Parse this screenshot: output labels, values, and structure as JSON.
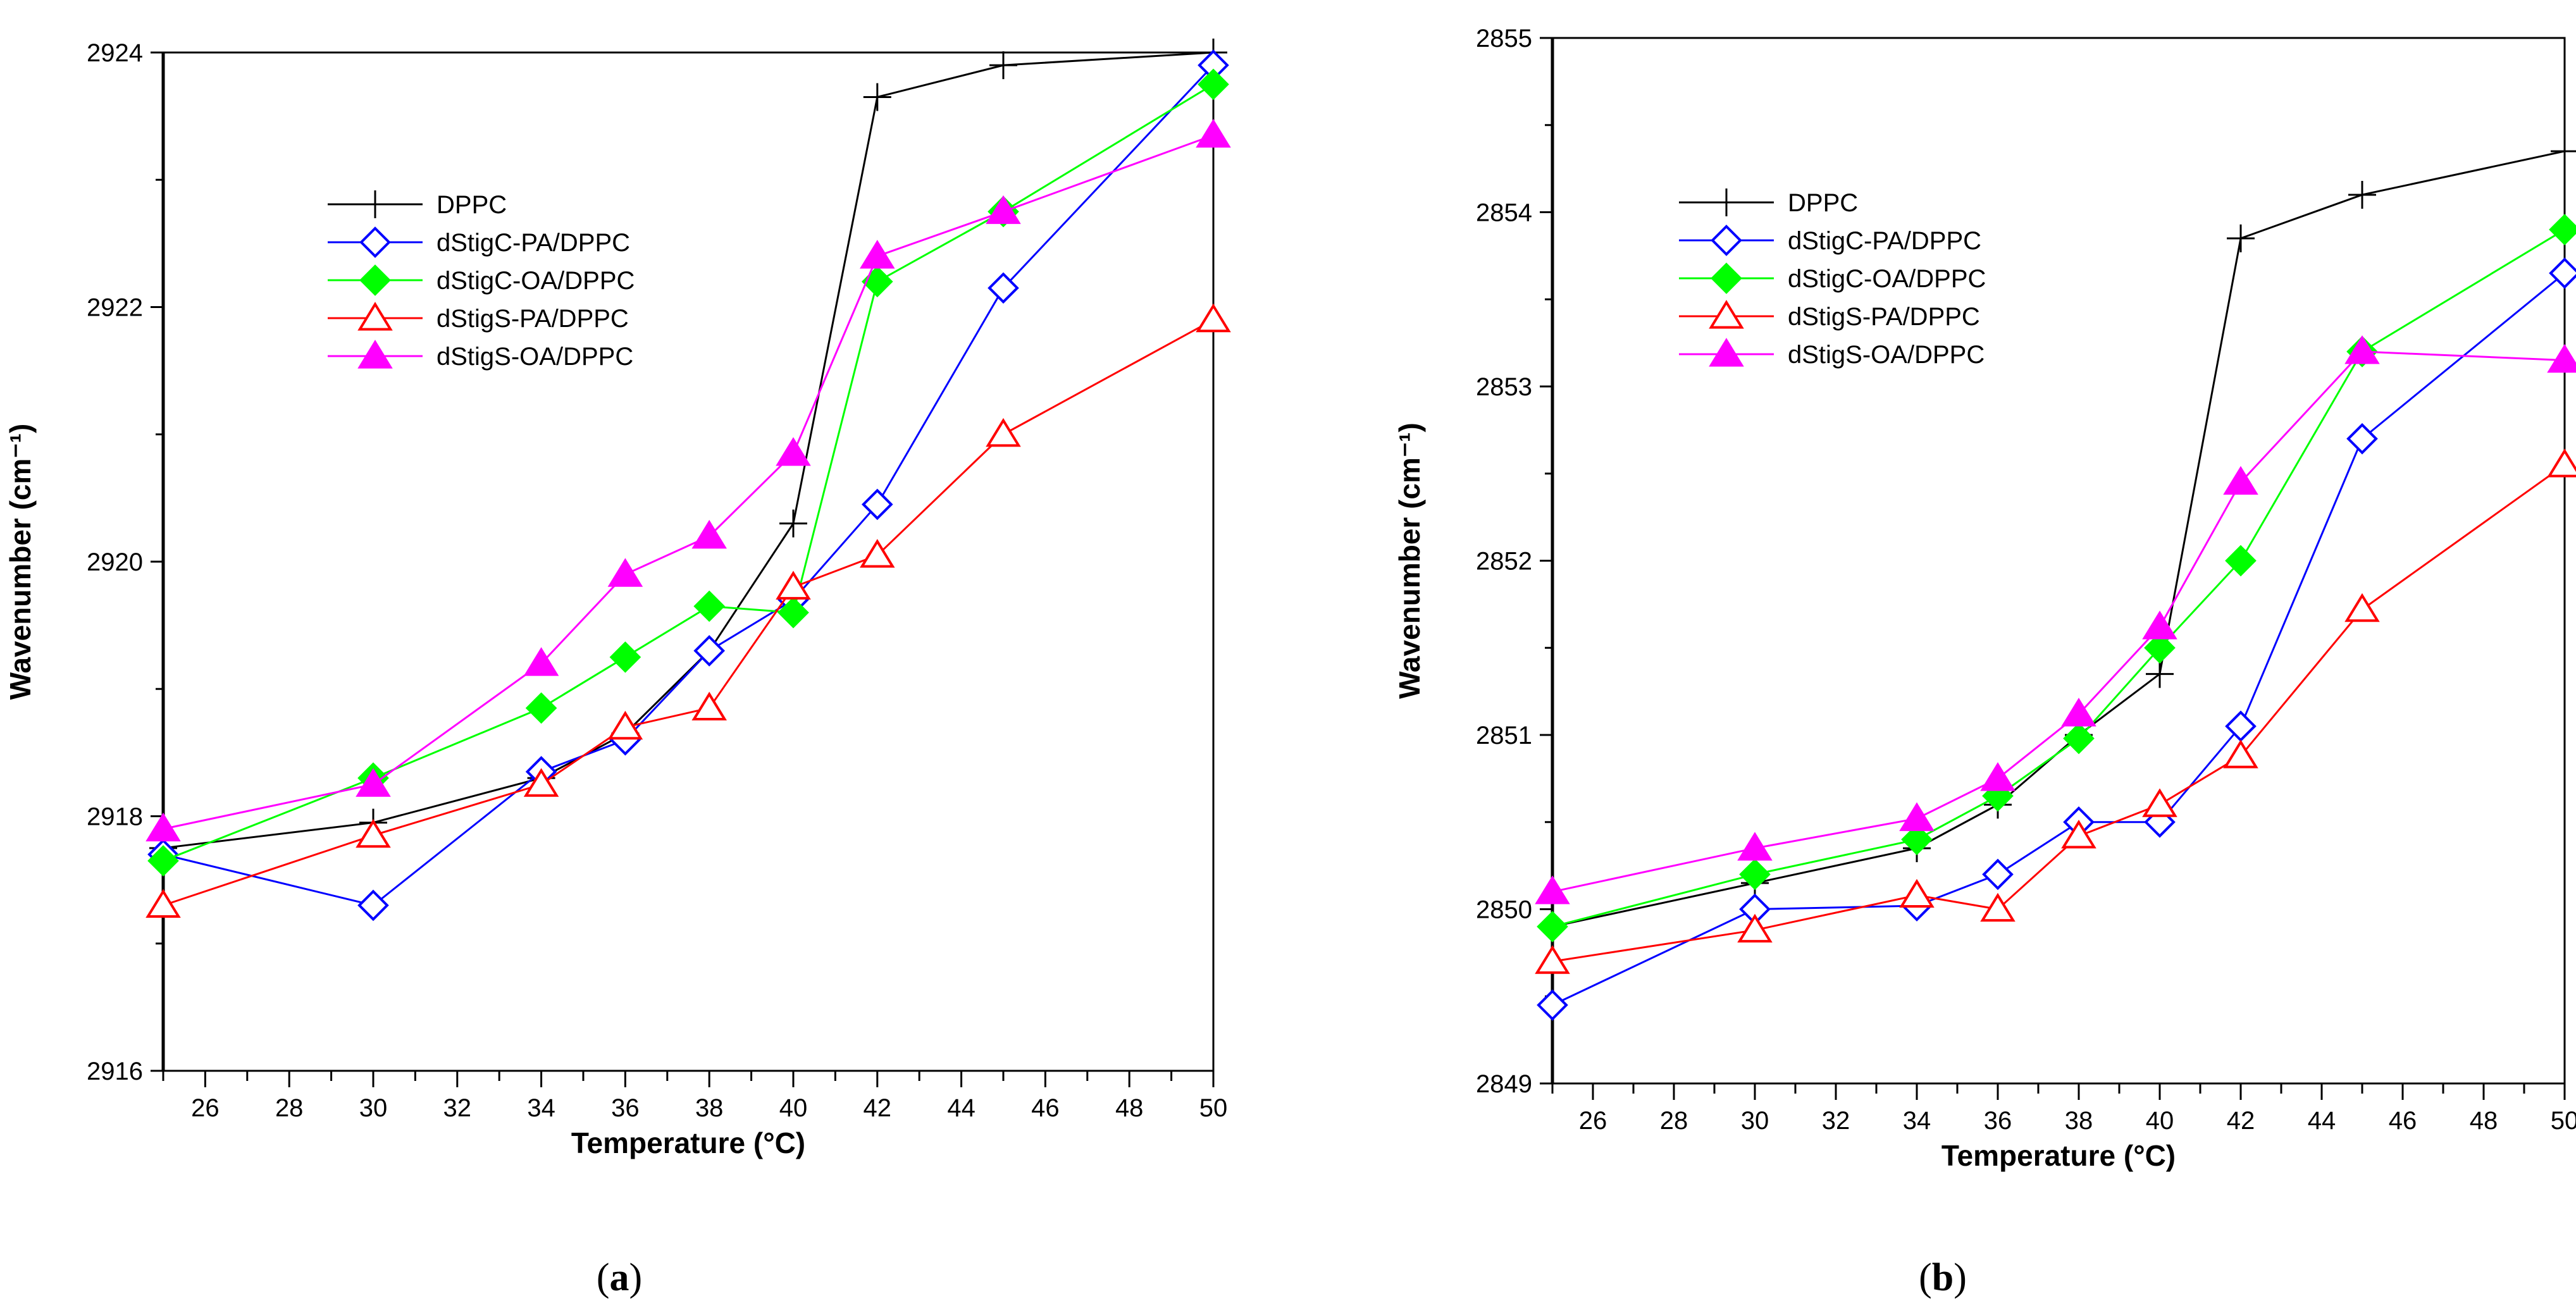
{
  "chart_data": [
    {
      "type": "line",
      "panel_label": "a",
      "xlabel": "Temperature",
      "xlabel_unit": "(°C)",
      "ylabel": "Wavenumber",
      "ylabel_unit": "(cm⁻¹)",
      "xlim": [
        25,
        50
      ],
      "ylim": [
        2916,
        2924
      ],
      "xticks": [
        26,
        28,
        30,
        32,
        34,
        36,
        38,
        40,
        42,
        44,
        46,
        48,
        50
      ],
      "yticks": [
        2916,
        2918,
        2920,
        2922,
        2924
      ],
      "legend_position": "upper-left",
      "series": [
        {
          "name": "DPPC",
          "marker": "plus",
          "color": "#000000",
          "x": [
            25,
            30,
            34,
            36,
            38,
            40,
            42,
            45,
            50
          ],
          "y": [
            2917.75,
            2917.95,
            2918.3,
            2918.65,
            2919.3,
            2920.3,
            2923.65,
            2923.9,
            2924.0
          ]
        },
        {
          "name": "dStigC-PA/DPPC",
          "marker": "diamond-open",
          "color": "#0000ff",
          "x": [
            25,
            30,
            34,
            36,
            38,
            40,
            42,
            45,
            50
          ],
          "y": [
            2917.7,
            2917.3,
            2918.35,
            2918.6,
            2919.3,
            2919.7,
            2920.45,
            2922.15,
            2923.9
          ]
        },
        {
          "name": "dStigC-OA/DPPC",
          "marker": "diamond-filled",
          "color": "#00ff00",
          "x": [
            25,
            30,
            34,
            36,
            38,
            40,
            42,
            45,
            50
          ],
          "y": [
            2917.65,
            2918.3,
            2918.85,
            2919.25,
            2919.65,
            2919.6,
            2922.2,
            2922.75,
            2923.75
          ]
        },
        {
          "name": "dStigS-PA/DPPC",
          "marker": "triangle-open",
          "color": "#ff0000",
          "x": [
            25,
            30,
            34,
            36,
            38,
            40,
            42,
            45,
            50
          ],
          "y": [
            2917.3,
            2917.85,
            2918.25,
            2918.7,
            2918.85,
            2919.8,
            2920.05,
            2921.0,
            2921.9
          ]
        },
        {
          "name": "dStigS-OA/DPPC",
          "marker": "triangle-filled",
          "color": "#ff00ff",
          "x": [
            25,
            30,
            34,
            36,
            38,
            40,
            42,
            45,
            50
          ],
          "y": [
            2917.9,
            2918.25,
            2919.2,
            2919.9,
            2920.2,
            2920.85,
            2922.4,
            2922.75,
            2923.35
          ]
        }
      ]
    },
    {
      "type": "line",
      "panel_label": "b",
      "xlabel": "Temperature",
      "xlabel_unit": "(°C)",
      "ylabel": "Wavenumber",
      "ylabel_unit": "(cm⁻¹)",
      "xlim": [
        25,
        50
      ],
      "ylim": [
        2849,
        2855
      ],
      "xticks": [
        26,
        28,
        30,
        32,
        34,
        36,
        38,
        40,
        42,
        44,
        46,
        48,
        50
      ],
      "yticks": [
        2849,
        2850,
        2851,
        2852,
        2853,
        2854,
        2855
      ],
      "legend_position": "upper-left",
      "series": [
        {
          "name": "DPPC",
          "marker": "plus",
          "color": "#000000",
          "x": [
            25,
            30,
            34,
            36,
            38,
            40,
            42,
            45,
            50
          ],
          "y": [
            2849.9,
            2850.15,
            2850.35,
            2850.6,
            2851.0,
            2851.35,
            2853.85,
            2854.1,
            2854.35
          ]
        },
        {
          "name": "dStigC-PA/DPPC",
          "marker": "diamond-open",
          "color": "#0000ff",
          "x": [
            25,
            30,
            34,
            36,
            38,
            40,
            42,
            45,
            50
          ],
          "y": [
            2849.45,
            2850.0,
            2850.02,
            2850.2,
            2850.5,
            2850.5,
            2851.05,
            2852.7,
            2853.65
          ]
        },
        {
          "name": "dStigC-OA/DPPC",
          "marker": "diamond-filled",
          "color": "#00ff00",
          "x": [
            25,
            30,
            34,
            36,
            38,
            40,
            42,
            45,
            50
          ],
          "y": [
            2849.9,
            2850.2,
            2850.4,
            2850.65,
            2850.98,
            2851.5,
            2852.0,
            2853.2,
            2853.9
          ]
        },
        {
          "name": "dStigS-PA/DPPC",
          "marker": "triangle-open",
          "color": "#ff0000",
          "x": [
            25,
            30,
            34,
            36,
            38,
            40,
            42,
            45,
            50
          ],
          "y": [
            2849.7,
            2849.88,
            2850.08,
            2850.0,
            2850.42,
            2850.6,
            2850.88,
            2851.72,
            2852.55
          ]
        },
        {
          "name": "dStigS-OA/DPPC",
          "marker": "triangle-filled",
          "color": "#ff00ff",
          "x": [
            25,
            30,
            34,
            36,
            38,
            40,
            42,
            45,
            50
          ],
          "y": [
            2850.1,
            2850.35,
            2850.52,
            2850.75,
            2851.12,
            2851.62,
            2852.45,
            2853.2,
            2853.15
          ]
        }
      ]
    }
  ],
  "captions": {
    "a": "a",
    "b": "b"
  }
}
